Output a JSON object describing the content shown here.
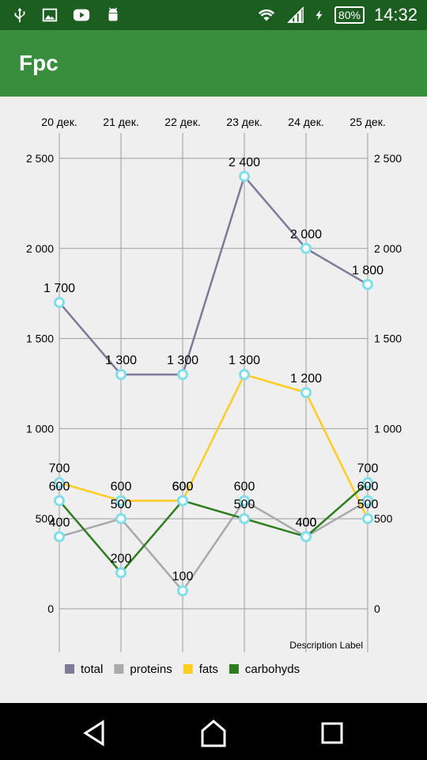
{
  "status_bar": {
    "time": "14:32",
    "battery": "80%",
    "icons": [
      "usb-icon",
      "image-icon",
      "youtube-icon",
      "android-icon",
      "wifi-icon",
      "signal-icon",
      "charging-icon"
    ]
  },
  "app_bar": {
    "title": "Fpc"
  },
  "chart_data": {
    "type": "line",
    "categories": [
      "20 дек.",
      "21 дек.",
      "22 дек.",
      "23 дек.",
      "24 дек.",
      "25 дек."
    ],
    "y_ticks": [
      "0",
      "500",
      "1 000",
      "1 500",
      "2 000",
      "2 500"
    ],
    "ylim": [
      0,
      2500
    ],
    "series": [
      {
        "name": "total",
        "color": "#7e7a9a",
        "values": [
          1700,
          1300,
          1300,
          2400,
          2000,
          1800
        ],
        "labels": [
          "1 700",
          "1 300",
          "1 300",
          "2 400",
          "2 000",
          "1 800"
        ]
      },
      {
        "name": "proteins",
        "color": "#a9a9a9",
        "values": [
          400,
          500,
          100,
          600,
          400,
          600
        ],
        "labels": [
          "400",
          "500",
          "100",
          "600",
          "400",
          "600"
        ]
      },
      {
        "name": "fats",
        "color": "#ffcc22",
        "values": [
          700,
          600,
          600,
          1300,
          1200,
          500
        ],
        "labels": [
          "700",
          "600",
          "600",
          "1 300",
          "1 200",
          "500"
        ]
      },
      {
        "name": "carbohyds",
        "color": "#2e7d1e",
        "values": [
          600,
          200,
          600,
          500,
          400,
          700
        ],
        "labels": [
          "600",
          "200",
          "600",
          "500",
          "400",
          "700"
        ]
      }
    ],
    "description": "Description Label",
    "grid": true,
    "legend_position": "bottom-left"
  }
}
